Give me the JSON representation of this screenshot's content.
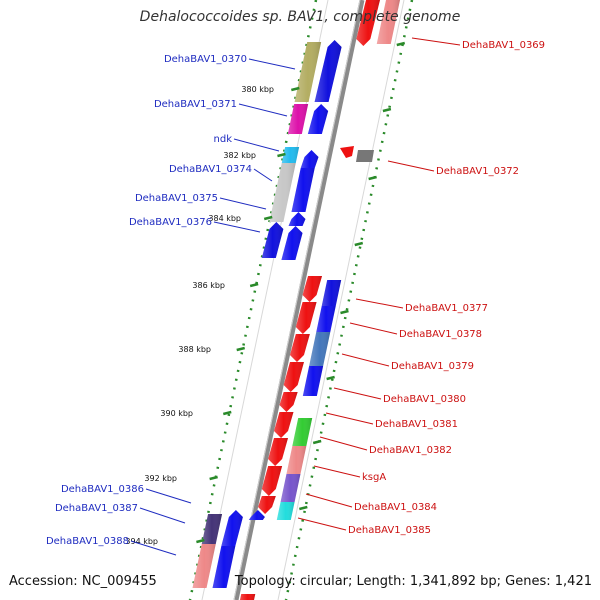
{
  "title": "Dehalococcoides sp. BAV1, complete genome",
  "accession": "Accession: NC_009455",
  "topology": "Topology: circular; Length: 1,341,892 bp; Genes: 1,421",
  "colors": {
    "reverse_label": "#1f2cc0",
    "forward_label": "#cc1111",
    "backbone": "#888888",
    "tick": "#2a8a2a"
  },
  "ticks": [
    "380 kbp",
    "382 kbp",
    "384 kbp",
    "386 kbp",
    "388 kbp",
    "390 kbp",
    "392 kbp",
    "394 kbp"
  ],
  "reverse_genes": [
    "DehaBAV1_0370",
    "DehaBAV1_0371",
    "ndk",
    "DehaBAV1_0374",
    "DehaBAV1_0375",
    "DehaBAV1_0376",
    "DehaBAV1_0386",
    "DehaBAV1_0387",
    "DehaBAV1_0388"
  ],
  "forward_genes": [
    "DehaBAV1_0369",
    "DehaBAV1_0372",
    "DehaBAV1_0377",
    "DehaBAV1_0378",
    "DehaBAV1_0379",
    "DehaBAV1_0380",
    "DehaBAV1_0381",
    "DehaBAV1_0382",
    "ksgA",
    "DehaBAV1_0384",
    "DehaBAV1_0385"
  ]
}
